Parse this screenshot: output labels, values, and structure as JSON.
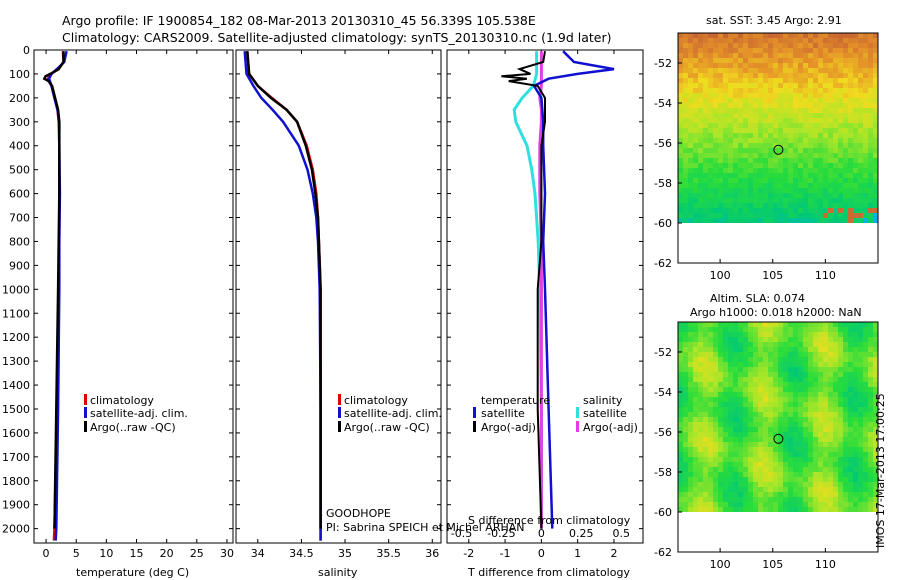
{
  "header": {
    "title_line1": "Argo profile: IF 1900854_182 08-Mar-2013 20130310_45 56.339S 105.538E",
    "title_line2": "Climatology: CARS2009. Satellite-adjusted climatology: synTS_20130310.nc (1.9d later)"
  },
  "colors": {
    "climatology": "#e00000",
    "satellite": "#1010d0",
    "argo": "#000000",
    "salinity_satellite": "#30e0e0",
    "salinity_argo": "#e040e0"
  },
  "depth_axis": {
    "ticks": [
      0,
      100,
      200,
      300,
      400,
      500,
      600,
      700,
      800,
      900,
      1000,
      1100,
      1200,
      1300,
      1400,
      1500,
      1600,
      1700,
      1800,
      1900,
      2000
    ],
    "range": [
      0,
      2060
    ]
  },
  "chart_data": [
    {
      "id": "temperature",
      "type": "line",
      "xlabel": "temperature (deg C)",
      "ylabel": "",
      "xlim": [
        -2,
        31
      ],
      "xticks": [
        0,
        5,
        10,
        15,
        20,
        25,
        30
      ],
      "legend": [
        "climatology",
        "satellite-adj. clim.",
        "Argo(..raw -QC)"
      ],
      "series": [
        {
          "name": "climatology",
          "depth": [
            5,
            50,
            80,
            100,
            120,
            150,
            200,
            250,
            300,
            400,
            600,
            800,
            1000,
            1500,
            2000,
            2050
          ],
          "values": [
            2.8,
            2.9,
            2.1,
            0.8,
            0.3,
            0.9,
            1.4,
            1.9,
            2.1,
            2.2,
            2.2,
            2.2,
            2.1,
            1.8,
            1.4,
            1.3
          ]
        },
        {
          "name": "satellite-adj. clim.",
          "depth": [
            5,
            50,
            80,
            100,
            120,
            150,
            200,
            250,
            300,
            400,
            600,
            800,
            1000,
            1500,
            2000,
            2050
          ],
          "values": [
            3.4,
            3.0,
            1.8,
            0.9,
            0.5,
            0.9,
            1.4,
            1.9,
            2.2,
            2.2,
            2.3,
            2.2,
            2.2,
            2.0,
            1.7,
            1.6
          ]
        },
        {
          "name": "Argo(..raw -QC)",
          "depth": [
            5,
            50,
            80,
            100,
            110,
            120,
            130,
            150,
            200,
            250,
            300,
            400,
            600,
            800,
            1000,
            1500,
            2000
          ],
          "values": [
            2.9,
            2.9,
            2.1,
            0.7,
            -0.1,
            -0.3,
            0.4,
            1.0,
            1.5,
            2.0,
            2.2,
            2.2,
            2.2,
            2.1,
            2.0,
            1.7,
            1.4
          ]
        }
      ]
    },
    {
      "id": "salinity",
      "type": "line",
      "xlabel": "salinity",
      "ylabel": "",
      "xlim": [
        33.75,
        36.1
      ],
      "xticks": [
        34,
        34.5,
        35,
        35.5,
        36
      ],
      "legend": [
        "climatology",
        "satellite-adj. clim.",
        "Argo(..raw -QC)"
      ],
      "annotation": [
        "GOODHOPE",
        "PI: Sabrina SPEICH et Michel ARHAN"
      ],
      "series": [
        {
          "name": "climatology",
          "depth": [
            5,
            100,
            150,
            200,
            250,
            300,
            400,
            500,
            600,
            700,
            800,
            1000,
            1500,
            2000,
            2050
          ],
          "values": [
            33.88,
            33.9,
            34.0,
            34.16,
            34.33,
            34.45,
            34.56,
            34.63,
            34.67,
            34.69,
            34.7,
            34.72,
            34.72,
            34.72,
            34.72
          ]
        },
        {
          "name": "satellite-adj. clim.",
          "depth": [
            5,
            100,
            150,
            200,
            250,
            300,
            400,
            500,
            600,
            700,
            800,
            1000,
            1500,
            2000,
            2050
          ],
          "values": [
            33.85,
            33.87,
            33.95,
            34.04,
            34.17,
            34.29,
            34.47,
            34.57,
            34.63,
            34.67,
            34.69,
            34.71,
            34.72,
            34.72,
            34.72
          ]
        },
        {
          "name": "Argo(..raw -QC)",
          "depth": [
            5,
            100,
            150,
            200,
            250,
            300,
            400,
            500,
            600,
            700,
            800,
            1000,
            1500,
            2000
          ],
          "values": [
            33.88,
            33.9,
            34.0,
            34.15,
            34.33,
            34.45,
            34.55,
            34.62,
            34.66,
            34.69,
            34.7,
            34.72,
            34.72,
            34.72
          ]
        }
      ]
    },
    {
      "id": "difference",
      "type": "line",
      "xlabel": "T difference from climatology",
      "xlabel_top": "S difference from climatology",
      "xlim": [
        -2.6,
        2.8
      ],
      "xticks": [
        -2,
        -1,
        0,
        1,
        2
      ],
      "top_xticks": [
        -0.5,
        -0.25,
        0,
        0.25,
        0.5
      ],
      "legend_left_title": "temperature",
      "legend_right_title": "salinity",
      "legend": [
        "satellite",
        "Argo(-adj)",
        "satellite",
        "Argo(-adj)"
      ],
      "series": [
        {
          "name": "T satellite",
          "depth": [
            5,
            50,
            80,
            100,
            120,
            150,
            200,
            300,
            400,
            600,
            800,
            1000,
            1500,
            2000
          ],
          "values": [
            0.6,
            0.9,
            2.0,
            1.0,
            0.2,
            -0.2,
            0,
            0.05,
            0.05,
            0.1,
            0.05,
            0.1,
            0.2,
            0.3
          ]
        },
        {
          "name": "T Argo(-adj)",
          "depth": [
            5,
            50,
            80,
            100,
            110,
            120,
            130,
            150,
            200,
            300,
            400,
            600,
            800,
            1000,
            1500,
            2000
          ],
          "values": [
            0.1,
            0.05,
            -0.6,
            -0.3,
            -1.1,
            -0.4,
            -0.9,
            -0.1,
            0.1,
            0.1,
            0,
            0,
            0,
            -0.1,
            -0.1,
            0
          ],
          "scale": 1
        },
        {
          "name": "S satellite",
          "depth": [
            5,
            100,
            150,
            200,
            250,
            300,
            400,
            500,
            600,
            800,
            1000,
            1500,
            2000
          ],
          "values": [
            -0.03,
            -0.03,
            -0.05,
            -0.12,
            -0.17,
            -0.16,
            -0.09,
            -0.06,
            -0.04,
            -0.02,
            -0.01,
            0,
            0
          ]
        },
        {
          "name": "S Argo(-adj)",
          "depth": [
            5,
            100,
            150,
            200,
            250,
            300,
            400,
            600,
            800,
            1000,
            1500,
            2000
          ],
          "values": [
            0,
            0,
            0,
            -0.01,
            0,
            0,
            -0.01,
            -0.01,
            0,
            0,
            0,
            0
          ]
        }
      ]
    },
    {
      "id": "sst_map",
      "type": "heatmap",
      "title": "sat. SST: 3.45 Argo: 2.91",
      "xlim": [
        96,
        115
      ],
      "ylim": [
        -62,
        -50.5
      ],
      "xticks": [
        100,
        105,
        110
      ],
      "yticks": [
        -52,
        -54,
        -56,
        -58,
        -60,
        -62
      ],
      "marker": {
        "lon": 105.538,
        "lat": -56.339
      }
    },
    {
      "id": "sla_map",
      "type": "heatmap",
      "title": "Altim. SLA: 0.074",
      "subtitle": "Argo h1000: 0.018 h2000: NaN",
      "xlim": [
        96,
        115
      ],
      "ylim": [
        -62,
        -50.5
      ],
      "xticks": [
        100,
        105,
        110
      ],
      "yticks": [
        -52,
        -54,
        -56,
        -58,
        -60,
        -62
      ],
      "marker": {
        "lon": 105.538,
        "lat": -56.339
      }
    }
  ],
  "footer": {
    "stamp": "IMOS 17-Mar-2013 17:00:25"
  }
}
